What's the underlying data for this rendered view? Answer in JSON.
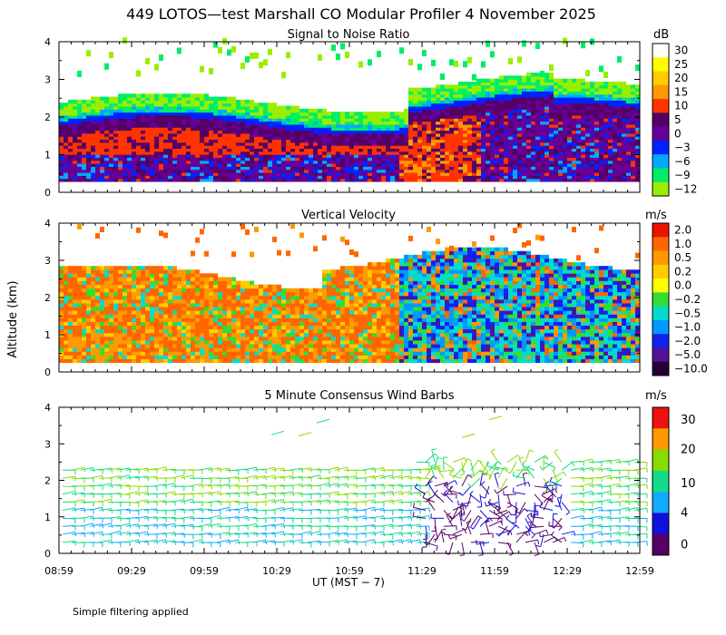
{
  "title": "449 LOTOS—test Marshall CO Modular Profiler  4 November 2025",
  "ylabel": "Altitude (km)",
  "xlabel": "UT  (MST − 7)",
  "note": "Simple filtering applied",
  "x_ticks": [
    "08:59",
    "09:29",
    "09:59",
    "10:29",
    "10:59",
    "11:29",
    "11:59",
    "12:29",
    "12:59"
  ],
  "y_ticks": [
    "0",
    "1",
    "2",
    "3",
    "4"
  ],
  "chart_data": [
    {
      "type": "heatmap",
      "title": "Signal to Noise Ratio",
      "ylabel": "Altitude (km)",
      "ylim": [
        0,
        4
      ],
      "colorbar": {
        "unit": "dB",
        "labels": [
          "30",
          "25",
          "20",
          "15",
          "10",
          "5",
          "0",
          "−3",
          "−6",
          "−9",
          "−12"
        ],
        "colors": [
          "#ffffff",
          "#ffff00",
          "#ffcc00",
          "#ff9900",
          "#ff3300",
          "#550066",
          "#660099",
          "#0022ff",
          "#00aaff",
          "#00ee66",
          "#99ee00"
        ]
      }
    },
    {
      "type": "heatmap",
      "title": "Vertical Velocity",
      "ylabel": "Altitude (km)",
      "ylim": [
        0,
        4
      ],
      "colorbar": {
        "unit": "m/s",
        "labels": [
          "2.0",
          "1.0",
          "0.5",
          "0.2",
          "0.0",
          "−0.2",
          "−0.5",
          "−1.0",
          "−2.0",
          "−5.0",
          "−10.0"
        ],
        "colors": [
          "#ee1100",
          "#ff6600",
          "#ff9900",
          "#ffcc00",
          "#ffff00",
          "#33dd33",
          "#00ddcc",
          "#0099ff",
          "#1122ee",
          "#551199",
          "#220033"
        ]
      }
    },
    {
      "type": "scatter",
      "title": "5 Minute Consensus Wind Barbs",
      "ylabel": "Altitude (km)",
      "ylim": [
        0,
        4
      ],
      "colorbar": {
        "unit": "m/s",
        "labels": [
          "30",
          "20",
          "10",
          "4",
          "0"
        ],
        "colors": [
          "#ee1111",
          "#ff9900",
          "#88dd00",
          "#11dd88",
          "#11aaff",
          "#1111dd",
          "#550066"
        ]
      }
    }
  ]
}
